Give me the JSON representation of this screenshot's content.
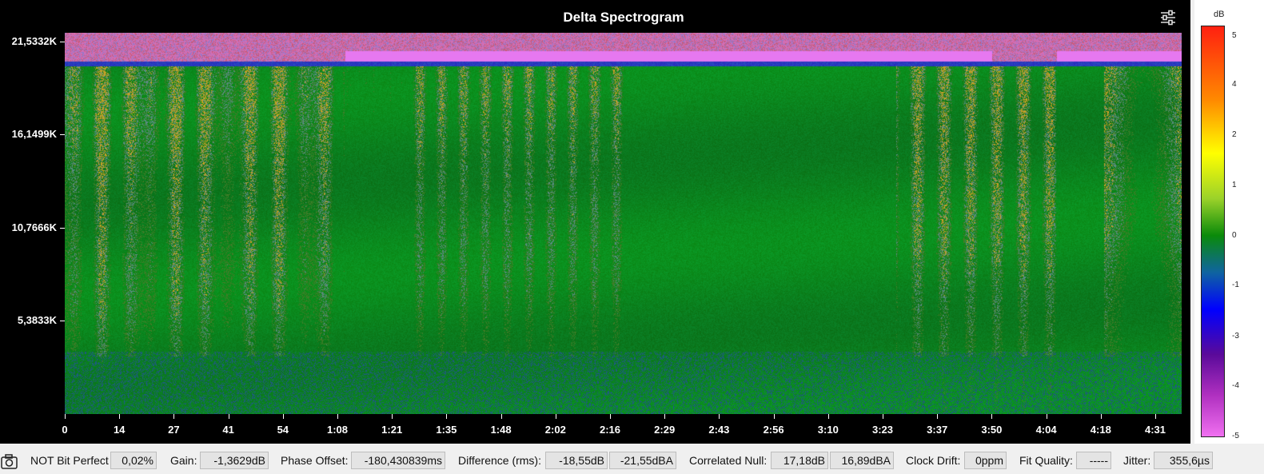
{
  "chart": {
    "title": "Delta Spectrogram",
    "y_ticks": [
      "21,5332K",
      "16,1499K",
      "10,7666K",
      "5,3833K"
    ],
    "x_ticks": [
      "0",
      "14",
      "27",
      "41",
      "54",
      "1:08",
      "1:21",
      "1:35",
      "1:48",
      "2:02",
      "2:16",
      "2:29",
      "2:43",
      "2:56",
      "3:10",
      "3:23",
      "3:37",
      "3:50",
      "4:04",
      "4:18",
      "4:31"
    ]
  },
  "chart_data": {
    "type": "heatmap",
    "title": "Delta Spectrogram",
    "y_tick_labels": [
      "21,5332K",
      "16,1499K",
      "10,7666K",
      "5,3833K"
    ],
    "x_tick_labels": [
      "0",
      "14",
      "27",
      "41",
      "54",
      "1:08",
      "1:21",
      "1:35",
      "1:48",
      "2:02",
      "2:16",
      "2:29",
      "2:43",
      "2:56",
      "3:10",
      "3:23",
      "3:37",
      "3:50",
      "4:04",
      "4:18",
      "4:31"
    ],
    "colorbar": {
      "unit": "dB",
      "range": [
        -5,
        5
      ],
      "tick_labels": [
        "5",
        "4",
        "2",
        "1",
        "0",
        "-1",
        "-3",
        "-4",
        "-5"
      ]
    }
  },
  "legend": {
    "unit": "dB",
    "labels": [
      "5",
      "4",
      "2",
      "1",
      "0",
      "-1",
      "-3",
      "-4",
      "-5"
    ]
  },
  "status": {
    "bit_perfect_label": "NOT Bit Perfect",
    "bit_perfect_value": "0,02%",
    "gain_label": "Gain:",
    "gain_value": "-1,3629dB",
    "phase_label": "Phase Offset:",
    "phase_value": "-180,430839ms",
    "diff_label": "Difference (rms):",
    "diff_value_db": "-18,55dB",
    "diff_value_dba": "-21,55dBA",
    "null_label": "Correlated Null:",
    "null_value_db": "17,18dB",
    "null_value_dba": "16,89dBA",
    "drift_label": "Clock Drift:",
    "drift_value": "0ppm",
    "fit_label": "Fit Quality:",
    "fit_value": "-----",
    "jitter_label": "Jitter:",
    "jitter_value": "355,6µs"
  },
  "icons": {
    "settings": "settings-sliders-icon",
    "camera": "camera-icon"
  }
}
